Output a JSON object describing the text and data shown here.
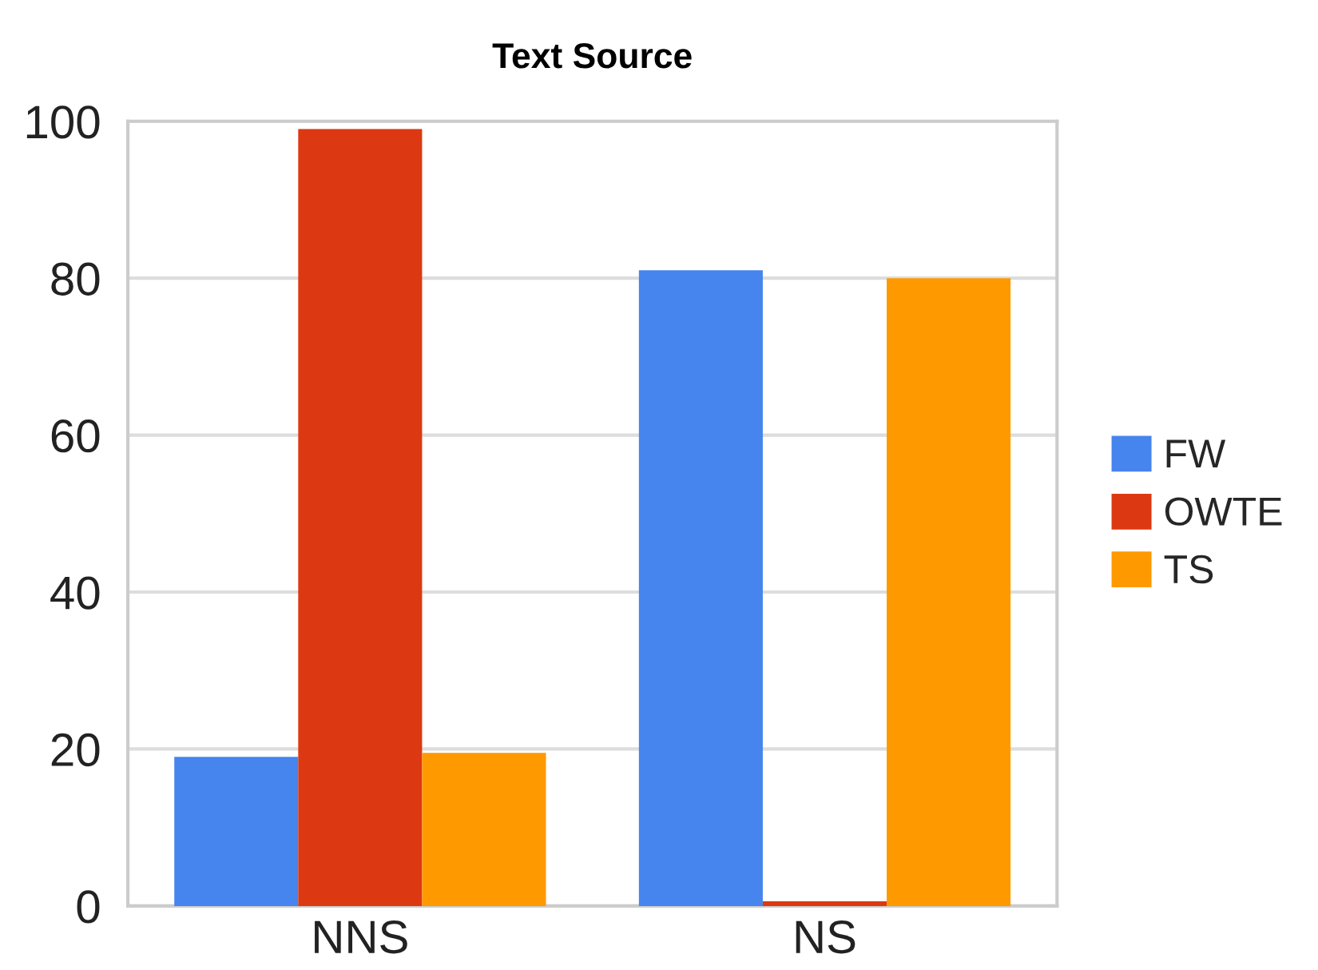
{
  "chart_data": {
    "type": "bar",
    "title": "Text Source",
    "categories": [
      "NNS",
      "NS"
    ],
    "series": [
      {
        "name": "FW",
        "color": "#4684ee",
        "values": [
          19,
          81
        ]
      },
      {
        "name": "OWTE",
        "color": "#dc3912",
        "values": [
          99,
          0.6
        ]
      },
      {
        "name": "TS",
        "color": "#ff9900",
        "values": [
          19.5,
          80
        ]
      }
    ],
    "ylim": [
      0,
      100
    ],
    "yticks": [
      0,
      20,
      40,
      60,
      80,
      100
    ],
    "grid": "y",
    "legend": "right"
  }
}
